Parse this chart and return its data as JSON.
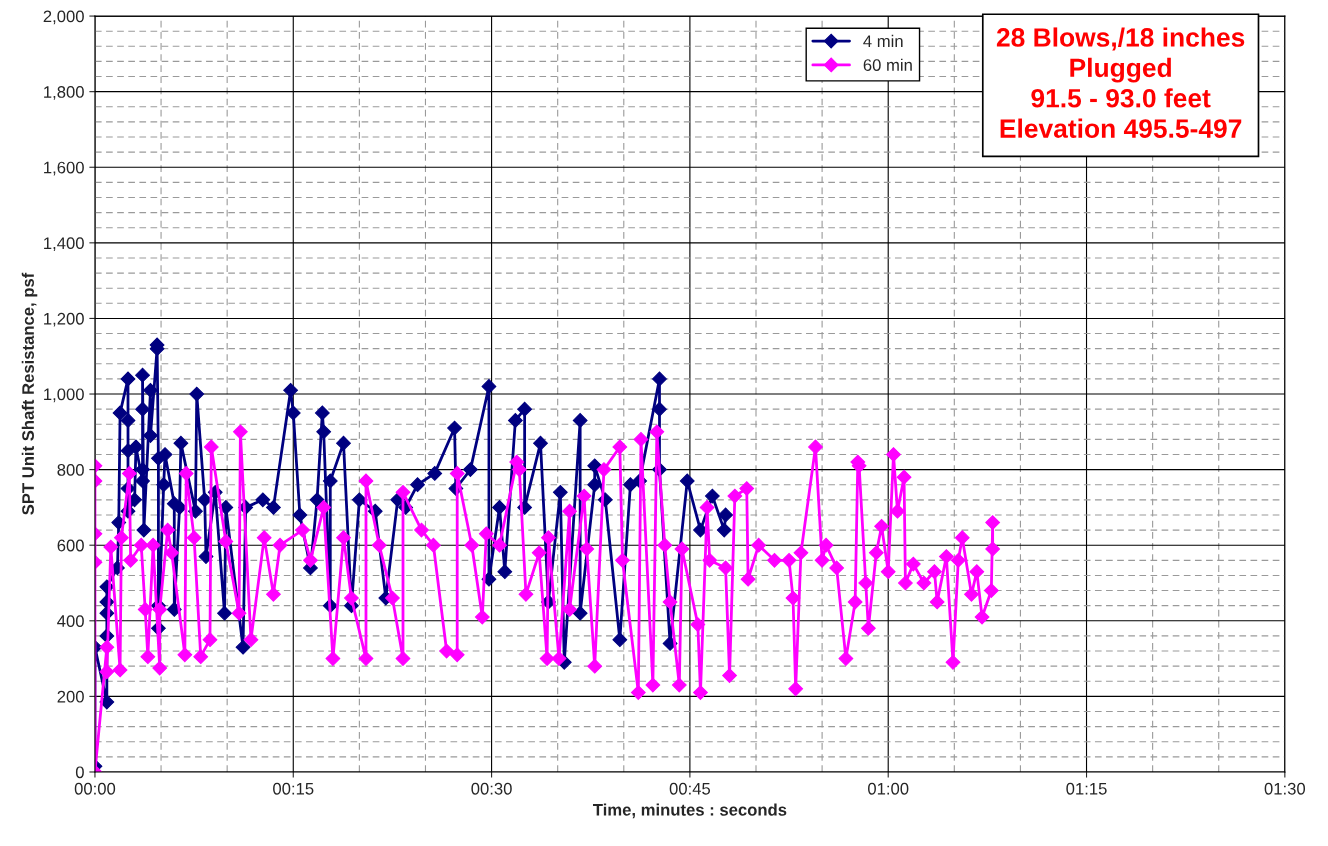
{
  "chart_data": {
    "type": "line",
    "xlabel": "Time, minutes : seconds",
    "ylabel": "SPT Unit Shaft Resistance, psf",
    "annotations": [
      "28 Blows,/18 inches\nPlugged\n91.5 - 93.0 feet\nElevation 495.5-497"
    ],
    "xlim": [
      0,
      90
    ],
    "ylim": [
      0,
      2000
    ],
    "xticks": [
      {
        "value": 0,
        "label": "00:00"
      },
      {
        "value": 15,
        "label": "00:15"
      },
      {
        "value": 30,
        "label": "00:30"
      },
      {
        "value": 45,
        "label": "00:45"
      },
      {
        "value": 60,
        "label": "01:00"
      },
      {
        "value": 75,
        "label": "01:15"
      },
      {
        "value": 90,
        "label": "01:30"
      }
    ],
    "yticks": [
      0,
      200,
      400,
      600,
      800,
      {
        "value": 1000,
        "label": "1,000"
      },
      {
        "value": 1200,
        "label": "1,200"
      },
      {
        "value": 1400,
        "label": "1,400"
      },
      {
        "value": 1600,
        "label": "1,600"
      },
      {
        "value": 1800,
        "label": "1,800"
      },
      {
        "value": 2000,
        "label": "2,000"
      }
    ],
    "grid": true,
    "legend": "top right",
    "marker": "diamond",
    "line_style": "solid",
    "series": [
      {
        "name": "4 min",
        "color": "#000080",
        "x": [
          0.0,
          0.0,
          0.9,
          0.9,
          0.9,
          0.9,
          0.9,
          1.7,
          1.8,
          1.9,
          2.5,
          2.5,
          2.5,
          2.5,
          2.5,
          3.0,
          3.1,
          3.6,
          3.6,
          3.6,
          3.6,
          3.7,
          4.2,
          4.2,
          4.7,
          4.7,
          4.8,
          4.8,
          4.8,
          5.2,
          5.3,
          6.0,
          6.0,
          6.4,
          6.5,
          7.6,
          7.7,
          8.3,
          8.4,
          9.1,
          9.8,
          9.9,
          11.2,
          11.4,
          12.7,
          13.5,
          14.8,
          15.0,
          15.5,
          16.3,
          16.8,
          17.2,
          17.3,
          17.8,
          17.8,
          18.8,
          19.4,
          20.0,
          21.2,
          22.0,
          22.9,
          23.5,
          24.4,
          25.7,
          27.2,
          27.3,
          28.4,
          29.8,
          29.8,
          30.6,
          31.0,
          31.8,
          32.5,
          32.5,
          33.7,
          34.3,
          35.2,
          35.5,
          36.7,
          36.7,
          37.8,
          37.8,
          38.6,
          39.7,
          40.5,
          41.2,
          42.7,
          42.7,
          42.7,
          43.5,
          44.8,
          45.8,
          46.7,
          47.6,
          47.7
        ],
        "values": [
          15,
          330,
          185,
          360,
          420,
          450,
          490,
          540,
          660,
          950,
          1040,
          930,
          850,
          750,
          690,
          720,
          860,
          770,
          800,
          960,
          1050,
          640,
          1010,
          890,
          1120,
          1130,
          830,
          440,
          380,
          760,
          840,
          710,
          430,
          700,
          870,
          690,
          1000,
          720,
          570,
          740,
          420,
          700,
          330,
          700,
          720,
          700,
          1010,
          950,
          680,
          540,
          720,
          950,
          900,
          440,
          770,
          870,
          440,
          720,
          690,
          460,
          720,
          700,
          760,
          790,
          910,
          750,
          800,
          1020,
          510,
          700,
          530,
          930,
          960,
          700,
          870,
          450,
          740,
          290,
          930,
          420,
          760,
          810,
          720,
          350,
          760,
          770,
          1040,
          960,
          800,
          340,
          770,
          640,
          730,
          640,
          680
        ]
      },
      {
        "name": "60 min",
        "color": "#ff00ff",
        "x": [
          0.0,
          0.0,
          0.0,
          0.0,
          0.0,
          0.9,
          0.9,
          1.2,
          1.9,
          2.0,
          2.6,
          2.7,
          3.5,
          3.8,
          4.0,
          4.4,
          4.9,
          4.9,
          5.5,
          5.8,
          6.8,
          6.9,
          7.5,
          8.0,
          8.7,
          8.8,
          9.9,
          10.9,
          11.0,
          11.8,
          12.8,
          13.5,
          14.0,
          15.7,
          16.3,
          17.3,
          18.0,
          18.8,
          19.4,
          20.5,
          20.5,
          21.5,
          22.5,
          23.3,
          23.3,
          24.7,
          25.6,
          26.6,
          27.4,
          27.4,
          28.5,
          29.3,
          29.6,
          30.6,
          31.9,
          32.1,
          32.6,
          33.6,
          34.2,
          34.3,
          35.1,
          35.9,
          35.9,
          37.0,
          37.2,
          37.8,
          38.5,
          39.7,
          39.9,
          41.1,
          41.3,
          42.2,
          42.5,
          43.1,
          43.5,
          44.2,
          44.4,
          45.6,
          45.8,
          46.3,
          46.5,
          47.7,
          48.0,
          48.4,
          49.3,
          49.4,
          50.2,
          51.4,
          52.5,
          52.8,
          53.0,
          53.4,
          54.5,
          55.0,
          55.3,
          56.1,
          56.8,
          57.5,
          57.7,
          57.8,
          58.3,
          58.5,
          59.1,
          59.5,
          60.0,
          60.4,
          60.7,
          61.2,
          61.3,
          61.9,
          62.7,
          63.5,
          63.7,
          64.4,
          64.9,
          65.3,
          65.6,
          66.3,
          66.7,
          67.1,
          67.8,
          67.9,
          67.9
        ],
        "values": [
          810,
          770,
          630,
          555,
          0,
          330,
          265,
          595,
          270,
          620,
          790,
          560,
          600,
          430,
          305,
          600,
          275,
          430,
          640,
          580,
          310,
          790,
          620,
          305,
          350,
          860,
          610,
          420,
          900,
          350,
          620,
          470,
          600,
          640,
          560,
          700,
          300,
          620,
          460,
          300,
          770,
          600,
          460,
          300,
          740,
          640,
          600,
          320,
          310,
          790,
          600,
          410,
          630,
          600,
          820,
          800,
          470,
          580,
          300,
          620,
          300,
          690,
          430,
          730,
          590,
          280,
          800,
          860,
          560,
          210,
          880,
          230,
          900,
          600,
          450,
          230,
          590,
          390,
          210,
          700,
          560,
          540,
          255,
          730,
          750,
          510,
          600,
          560,
          560,
          460,
          220,
          580,
          860,
          560,
          600,
          540,
          300,
          450,
          820,
          810,
          500,
          380,
          580,
          650,
          530,
          840,
          690,
          780,
          500,
          550,
          500,
          530,
          450,
          570,
          290,
          560,
          620,
          470,
          530,
          410,
          480,
          660,
          590
        ]
      }
    ]
  }
}
